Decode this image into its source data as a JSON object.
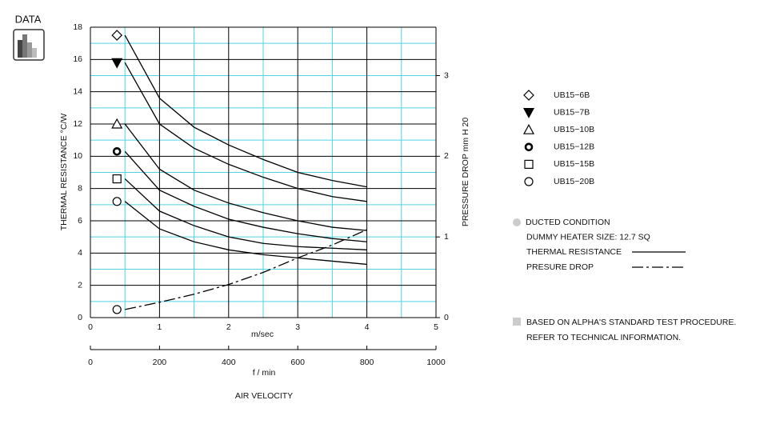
{
  "badge": "DATA",
  "chart_data": {
    "type": "line",
    "ylabel": "THERMAL RESISTANCE  °C/W",
    "y2label": "PRESSURE DROP   mm H 20",
    "xlabel": "m/sec",
    "x2label": "f / min",
    "axis_title": "AIR VELOCITY",
    "x": [
      0.5,
      1,
      1.5,
      2,
      2.5,
      3,
      3.5,
      4
    ],
    "xlim": [
      0,
      5
    ],
    "xticks": [
      0,
      1,
      2,
      3,
      4,
      5
    ],
    "x2lim": [
      0,
      1000
    ],
    "x2ticks": [
      0,
      200,
      400,
      600,
      800,
      1000
    ],
    "ylim": [
      0,
      18
    ],
    "yticks": [
      0,
      2,
      4,
      6,
      8,
      10,
      12,
      14,
      16,
      18
    ],
    "y2lim": [
      0,
      3.6
    ],
    "y2ticks": [
      0,
      1,
      2,
      3
    ],
    "grid": true,
    "major_grid_color": "#000000",
    "minor_grid_color": "#4fd3e3",
    "series": [
      {
        "name": "UB15−6B",
        "color": "#000000",
        "marker": "diamond",
        "style": "solid",
        "values": [
          17.5,
          13.6,
          11.8,
          10.7,
          9.8,
          9.0,
          8.5,
          8.1
        ]
      },
      {
        "name": "UB15−7B",
        "color": "#000000",
        "marker": "triangle-down",
        "style": "solid",
        "values": [
          15.8,
          12.0,
          10.5,
          9.5,
          8.7,
          8.0,
          7.5,
          7.2
        ]
      },
      {
        "name": "UB15−10B",
        "color": "#000000",
        "marker": "triangle-up",
        "style": "solid",
        "values": [
          12.0,
          9.2,
          7.9,
          7.1,
          6.5,
          6.0,
          5.6,
          5.4
        ]
      },
      {
        "name": "UB15−12B",
        "color": "#000000",
        "marker": "bold-circle",
        "style": "solid",
        "values": [
          10.3,
          7.9,
          6.9,
          6.1,
          5.6,
          5.2,
          4.9,
          4.7
        ]
      },
      {
        "name": "UB15−15B",
        "color": "#000000",
        "marker": "square",
        "style": "solid",
        "values": [
          8.6,
          6.6,
          5.7,
          5.0,
          4.6,
          4.4,
          4.3,
          4.2
        ]
      },
      {
        "name": "UB15−20B",
        "color": "#000000",
        "marker": "circle",
        "style": "solid",
        "values": [
          7.2,
          5.5,
          4.7,
          4.2,
          3.9,
          3.7,
          3.5,
          3.3
        ]
      },
      {
        "axis": "y2",
        "color": "#000000",
        "marker": "circle",
        "style": "dashdot",
        "values": [
          0.1,
          0.19,
          0.29,
          0.41,
          0.56,
          0.74,
          0.9,
          1.09
        ]
      }
    ],
    "conditions": [
      "DUCTED CONDITION",
      "DUMMY HEATER SIZE: 12.7 SQ"
    ],
    "line_key": [
      {
        "label": "THERMAL RESISTANCE",
        "style": "solid"
      },
      {
        "label": "PRESURE DROP",
        "style": "dashdot"
      }
    ],
    "footnote": [
      "BASED ON ALPHA'S STANDARD TEST PROCEDURE.",
      "REFER TO TECHNICAL INFORMATION."
    ]
  }
}
